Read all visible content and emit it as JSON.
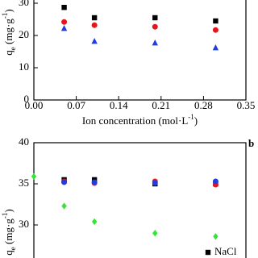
{
  "chart_data": [
    {
      "type": "scatter",
      "x_label": [
        "Ion concentration (mol·L",
        "-1",
        ")"
      ],
      "y_label": [
        "q",
        "e",
        " (mg·g",
        "-1",
        ")"
      ],
      "xlim": [
        0,
        0.35
      ],
      "xticks": [
        {
          "value": 0,
          "label": "0.00"
        },
        0.07,
        0.14,
        0.21,
        0.28,
        0.35
      ],
      "ylim": [
        0,
        35
      ],
      "yticks": [
        0,
        10,
        20,
        30
      ],
      "series": [
        {
          "color": "#000000",
          "marker": "square",
          "x": [
            0.05,
            0.1,
            0.2,
            0.3
          ],
          "values": [
            28.7,
            25.5,
            25.5,
            24.5
          ]
        },
        {
          "color": "#e8141c",
          "marker": "circle",
          "x": [
            0.05,
            0.1,
            0.2,
            0.3
          ],
          "values": [
            24.2,
            23.2,
            22.7,
            21.7
          ]
        },
        {
          "color": "#1f3de0",
          "marker": "triangle",
          "x": [
            0.05,
            0.1,
            0.2,
            0.3
          ],
          "values": [
            22.2,
            18.2,
            17.7,
            16.2
          ]
        }
      ]
    },
    {
      "type": "scatter",
      "panel_label": "b",
      "y_label": [
        "q",
        "e",
        " (mg·g",
        "-1",
        ")"
      ],
      "xlim": [
        0,
        0.35
      ],
      "ylim": [
        25,
        40
      ],
      "yticks": [
        30,
        35,
        40
      ],
      "series": [
        {
          "name": "NaCl",
          "color": "#000000",
          "marker": "square",
          "x": [
            0.05,
            0.1,
            0.2,
            0.3
          ],
          "values": [
            35.5,
            35.5,
            35.0,
            35.0
          ]
        },
        {
          "color": "#e8141c",
          "marker": "circle",
          "x": [
            0.05,
            0.1,
            0.2,
            0.3
          ],
          "values": [
            35.3,
            35.1,
            35.3,
            34.9
          ]
        },
        {
          "color": "#1f3de0",
          "marker": "circle",
          "x": [
            0.05,
            0.1,
            0.2,
            0.3
          ],
          "values": [
            35.2,
            35.2,
            35.1,
            35.3
          ]
        },
        {
          "color": "#33e633",
          "marker": "diamond",
          "x": [
            0,
            0.05,
            0.1,
            0.2,
            0.3
          ],
          "values": [
            35.9,
            32.3,
            30.4,
            29.0,
            28.6
          ]
        }
      ]
    }
  ]
}
